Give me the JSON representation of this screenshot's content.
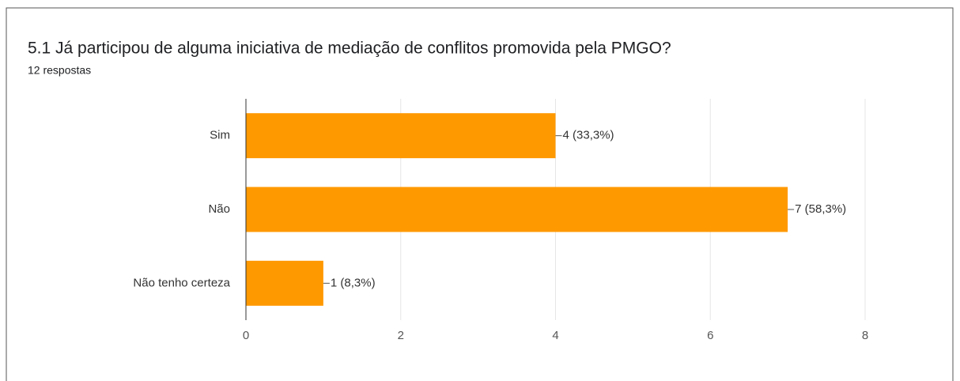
{
  "chart_data": {
    "type": "bar",
    "orientation": "horizontal",
    "title": "5.1  Já participou de alguma iniciativa de mediação de conflitos promovida pela PMGO?",
    "subtitle": "12 respostas",
    "categories": [
      "Sim",
      "Não",
      "Não tenho certeza"
    ],
    "values": [
      4,
      7,
      1
    ],
    "value_labels": [
      "4 (33,3%)",
      "7 (58,3%)",
      "1 (8,3%)"
    ],
    "color": "#ff9900",
    "xlim": [
      0,
      8
    ],
    "xticks": [
      0,
      2,
      4,
      6,
      8
    ],
    "grid": true
  }
}
